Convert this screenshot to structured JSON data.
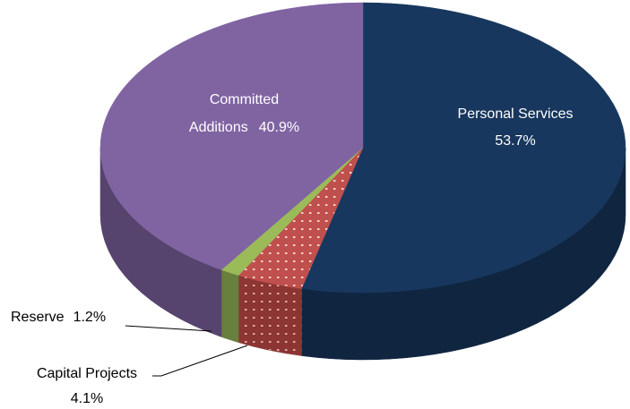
{
  "chart_data": {
    "type": "pie",
    "categories": [
      "Personal Services",
      "Capital Projects",
      "Reserve",
      "Committed Additions"
    ],
    "values": [
      53.7,
      4.1,
      1.2,
      40.9
    ],
    "value_labels": [
      "53.7%",
      "4.1%",
      "1.2%",
      "40.9%"
    ],
    "colors": [
      "#17375e",
      "#c0504d",
      "#9bbb59",
      "#8064a2"
    ]
  }
}
